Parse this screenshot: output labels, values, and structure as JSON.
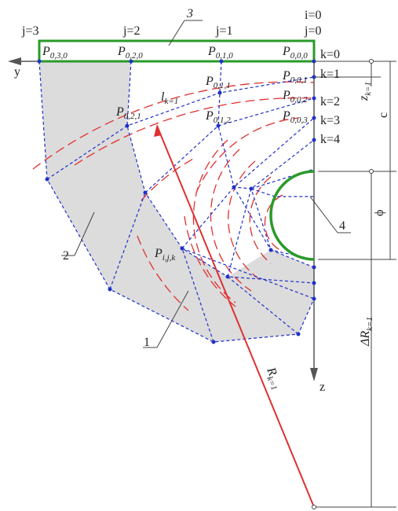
{
  "labels": [
    {
      "main": "j=3"
    },
    {
      "main": "j=2"
    },
    {
      "main": "j=1"
    },
    {
      "main": "i=0"
    },
    {
      "main": "j=0"
    },
    {
      "main": "3"
    },
    {
      "main": "P",
      "sub": "0,3,0"
    },
    {
      "main": "P",
      "sub": "0,2,0"
    },
    {
      "main": "P",
      "sub": "0,1,0"
    },
    {
      "main": "P",
      "sub": "0,0,0"
    },
    {
      "main": "P",
      "sub": "0,0,1"
    },
    {
      "main": "P",
      "sub": "0,0,2"
    },
    {
      "main": "P",
      "sub": "0,0,3"
    },
    {
      "main": "P",
      "sub": "0,1,1"
    },
    {
      "main": "P",
      "sub": "0,1,2"
    },
    {
      "main": "P",
      "sub": "0,2,1"
    },
    {
      "main": "l",
      "sub": "k=1"
    },
    {
      "main": "k=0"
    },
    {
      "main": "k=1"
    },
    {
      "main": "k=2"
    },
    {
      "main": "k=3"
    },
    {
      "main": "k=4"
    },
    {
      "main": "y"
    },
    {
      "main": "z"
    },
    {
      "main": "P",
      "sub": "i,j,k"
    },
    {
      "main": "1"
    },
    {
      "main": "2"
    },
    {
      "main": "4"
    },
    {
      "main": "R",
      "sub": "k=1"
    },
    {
      "main": "z",
      "sub": "k=1"
    },
    {
      "main": "c"
    },
    {
      "main": "ϕ"
    },
    {
      "main": "ΔR",
      "sub": "k=1"
    }
  ]
}
